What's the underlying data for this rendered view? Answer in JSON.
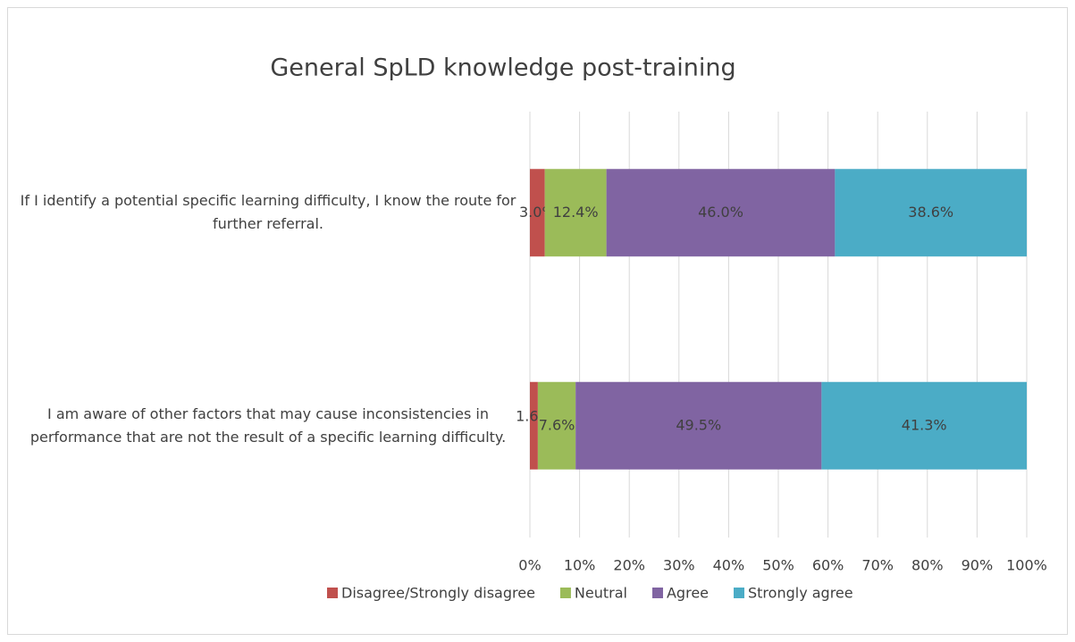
{
  "chart_data": {
    "type": "stacked_barh",
    "title": "General SpLD knowledge post-training",
    "categories": [
      "If I identify a potential specific learning difficulty, I know the route for further referral.",
      "I am aware of other factors that may cause inconsistencies in performance that are not the result of a specific learning difficulty."
    ],
    "series": [
      {
        "name": "Disagree/Strongly disagree",
        "color": "#c0504d",
        "values": [
          3.0,
          1.6
        ],
        "value_labels": [
          "3.0%",
          "1.6%"
        ]
      },
      {
        "name": "Neutral",
        "color": "#9bbb59",
        "values": [
          12.4,
          7.6
        ],
        "value_labels": [
          "12.4%",
          "7.6%"
        ]
      },
      {
        "name": "Agree",
        "color": "#8064a2",
        "values": [
          46.0,
          49.5
        ],
        "value_labels": [
          "46.0%",
          "49.5%"
        ]
      },
      {
        "name": "Strongly agree",
        "color": "#4bacc6",
        "values": [
          38.6,
          41.3
        ],
        "value_labels": [
          "38.6%",
          "41.3%"
        ]
      }
    ],
    "xlim": [
      0,
      100
    ],
    "xticks": [
      {
        "value": 0,
        "label": "0%"
      },
      {
        "value": 10,
        "label": "10%"
      },
      {
        "value": 20,
        "label": "20%"
      },
      {
        "value": 30,
        "label": "30%"
      },
      {
        "value": 40,
        "label": "40%"
      },
      {
        "value": 50,
        "label": "50%"
      },
      {
        "value": 60,
        "label": "60%"
      },
      {
        "value": 70,
        "label": "70%"
      },
      {
        "value": 80,
        "label": "80%"
      },
      {
        "value": 90,
        "label": "90%"
      },
      {
        "value": 100,
        "label": "100%"
      }
    ],
    "grid": true,
    "legend": "bottom"
  }
}
